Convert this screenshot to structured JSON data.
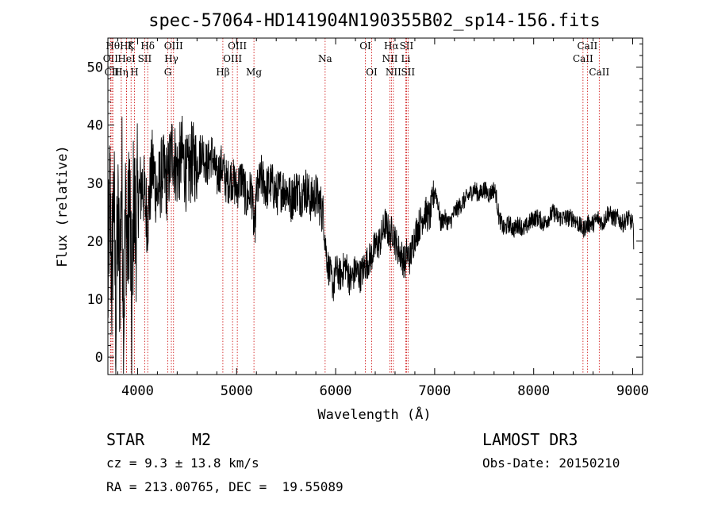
{
  "chart_data": {
    "type": "line",
    "title": "spec-57064-HD141904N190355B02_sp14-156.fits",
    "xlabel": "Wavelength (Å)",
    "ylabel": "Flux (relative)",
    "xlim": [
      3700,
      9100
    ],
    "ylim": [
      -3,
      55
    ],
    "xticks": [
      4000,
      5000,
      6000,
      7000,
      8000,
      9000
    ],
    "yticks": [
      0,
      10,
      20,
      30,
      40,
      50
    ],
    "series": [
      {
        "name": "flux",
        "x": [
          3700,
          3720,
          3740,
          3760,
          3780,
          3800,
          3820,
          3840,
          3860,
          3880,
          3900,
          3920,
          3940,
          3960,
          3980,
          4000,
          4050,
          4100,
          4150,
          4200,
          4250,
          4300,
          4350,
          4400,
          4450,
          4500,
          4550,
          4600,
          4650,
          4700,
          4750,
          4800,
          4850,
          4900,
          4950,
          5000,
          5050,
          5100,
          5150,
          5180,
          5200,
          5250,
          5300,
          5350,
          5400,
          5450,
          5500,
          5550,
          5600,
          5650,
          5700,
          5750,
          5800,
          5850,
          5880,
          5900,
          5920,
          5950,
          5980,
          6000,
          6050,
          6100,
          6150,
          6200,
          6250,
          6300,
          6350,
          6400,
          6450,
          6500,
          6550,
          6580,
          6600,
          6620,
          6650,
          6680,
          6700,
          6720,
          6750,
          6800,
          6850,
          6900,
          6950,
          7000,
          7030,
          7060,
          7100,
          7150,
          7200,
          7250,
          7300,
          7350,
          7400,
          7450,
          7500,
          7550,
          7600,
          7620,
          7650,
          7700,
          7750,
          7800,
          7850,
          7900,
          7950,
          8000,
          8050,
          8100,
          8150,
          8200,
          8250,
          8300,
          8350,
          8400,
          8450,
          8500,
          8550,
          8600,
          8650,
          8700,
          8750,
          8800,
          8850,
          8900,
          8950,
          9000,
          9010
        ],
        "values": [
          10,
          28,
          12,
          30,
          5,
          24,
          14,
          32,
          8,
          26,
          18,
          30,
          5,
          28,
          22,
          27,
          30,
          24,
          33,
          28,
          32,
          30,
          36,
          32,
          35,
          31,
          34,
          33,
          36,
          33,
          35,
          31,
          33,
          30,
          31,
          29,
          31,
          27,
          29,
          21,
          28,
          31,
          29,
          30,
          28,
          29,
          29,
          27,
          29,
          28,
          29,
          27,
          28,
          26,
          24,
          19,
          16,
          14,
          12,
          15,
          14,
          16,
          13,
          15,
          14,
          16,
          17,
          19,
          20,
          23,
          21,
          22,
          20,
          19,
          18,
          17,
          16,
          18,
          17,
          21,
          23,
          25,
          24,
          29,
          27,
          23,
          24,
          23,
          25,
          26,
          27,
          28,
          29,
          28,
          29,
          28,
          29,
          28,
          24,
          22,
          23,
          22,
          23,
          22,
          23,
          24,
          24,
          23,
          24,
          25,
          24,
          24,
          24,
          24,
          23,
          22,
          23,
          23,
          24,
          23,
          25,
          24,
          24,
          23,
          24,
          23,
          20
        ]
      }
    ],
    "line_markers": [
      {
        "label": "OII",
        "wavelength": 3727,
        "row": 2
      },
      {
        "label": "Hθ",
        "wavelength": 3750,
        "row": 1
      },
      {
        "label": "Hη",
        "wavelength": 3835,
        "row": 3
      },
      {
        "label": "Hζ",
        "wavelength": 3889,
        "row": 1
      },
      {
        "label": "HeI",
        "wavelength": 3889,
        "row": 2
      },
      {
        "label": "CII",
        "wavelength": 3740,
        "row": 3
      },
      {
        "label": "K",
        "wavelength": 3934,
        "row": 1
      },
      {
        "label": "H",
        "wavelength": 3968,
        "row": 3
      },
      {
        "label": "SII",
        "wavelength": 4072,
        "row": 2
      },
      {
        "label": "Hδ",
        "wavelength": 4102,
        "row": 1
      },
      {
        "label": "G",
        "wavelength": 4305,
        "row": 3
      },
      {
        "label": "OIII",
        "wavelength": 4363,
        "row": 1
      },
      {
        "label": "Hγ",
        "wavelength": 4341,
        "row": 2
      },
      {
        "label": "Hβ",
        "wavelength": 4861,
        "row": 3
      },
      {
        "label": "OIII",
        "wavelength": 4959,
        "row": 2
      },
      {
        "label": "OIII",
        "wavelength": 5007,
        "row": 1
      },
      {
        "label": "Mg",
        "wavelength": 5175,
        "row": 3
      },
      {
        "label": "Na",
        "wavelength": 5894,
        "row": 2
      },
      {
        "label": "OI",
        "wavelength": 6300,
        "row": 1
      },
      {
        "label": "OI",
        "wavelength": 6364,
        "row": 3
      },
      {
        "label": "NII",
        "wavelength": 6548,
        "row": 2
      },
      {
        "label": "Hα",
        "wavelength": 6563,
        "row": 1
      },
      {
        "label": "NII",
        "wavelength": 6583,
        "row": 3
      },
      {
        "label": "Li",
        "wavelength": 6708,
        "row": 2
      },
      {
        "label": "SII",
        "wavelength": 6716,
        "row": 1
      },
      {
        "label": "SII",
        "wavelength": 6731,
        "row": 3
      },
      {
        "label": "CaII",
        "wavelength": 8498,
        "row": 2
      },
      {
        "label": "CaII",
        "wavelength": 8542,
        "row": 1
      },
      {
        "label": "CaII",
        "wavelength": 8662,
        "row": 3
      }
    ],
    "colors": {
      "spectrum": "#000000",
      "markers": "#cc0000",
      "text": "#000000"
    }
  },
  "info": {
    "object_type": "STAR",
    "subclass": "M2",
    "survey": "LAMOST DR3",
    "redshift": "cz = 9.3 ± 13.8 km/s",
    "obs_date": "Obs-Date: 20150210",
    "coords": "RA = 213.00765, DEC =  19.55089"
  }
}
